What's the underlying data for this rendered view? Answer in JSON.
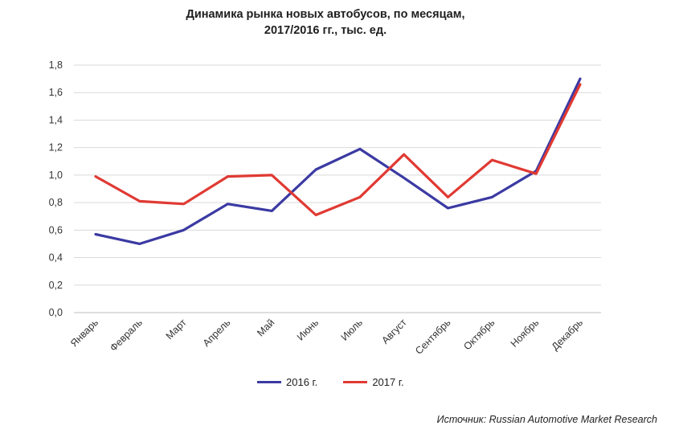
{
  "title_line1": "Динамика рынка новых автобусов, по месяцам,",
  "title_line2": "2017/2016 гг., тыс. ед.",
  "source": "Источник: Russian Automotive Market Research",
  "chart_data": {
    "type": "line",
    "categories": [
      "Январь",
      "Февраль",
      "Март",
      "Апрель",
      "Май",
      "Июнь",
      "Июль",
      "Август",
      "Сентябрь",
      "Октябрь",
      "Ноябрь",
      "Декабрь"
    ],
    "series": [
      {
        "name": "2016 г.",
        "color": "#3b3aa3",
        "values": [
          0.57,
          0.5,
          0.6,
          0.79,
          0.74,
          1.04,
          1.19,
          0.98,
          0.76,
          0.84,
          1.03,
          1.7
        ]
      },
      {
        "name": "2017 г.",
        "color": "#e03a33",
        "values": [
          0.99,
          0.81,
          0.79,
          0.99,
          1.0,
          0.71,
          0.84,
          1.15,
          0.84,
          1.11,
          1.01,
          1.66
        ]
      }
    ],
    "yticks": [
      "0,0",
      "0,2",
      "0,4",
      "0,6",
      "0,8",
      "1,0",
      "1,2",
      "1,4",
      "1,6",
      "1,8"
    ],
    "ylim": [
      0,
      1.8
    ],
    "grid": true,
    "legend_position": "bottom"
  }
}
